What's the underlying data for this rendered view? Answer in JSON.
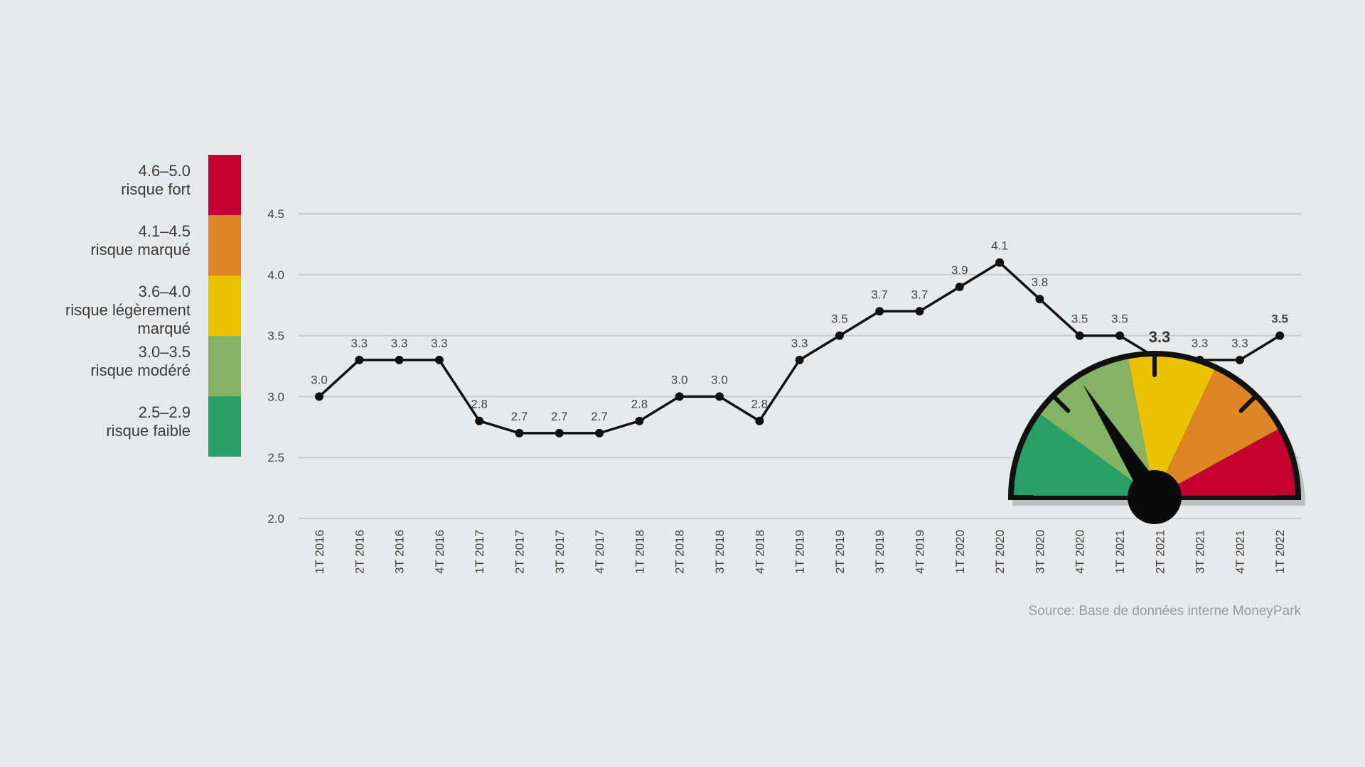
{
  "chart_data": {
    "type": "line",
    "categories": [
      "1T 2016",
      "2T 2016",
      "3T 2016",
      "4T 2016",
      "1T 2017",
      "2T 2017",
      "3T 2017",
      "4T 2017",
      "1T 2018",
      "2T 2018",
      "3T 2018",
      "4T 2018",
      "1T 2019",
      "2T 2019",
      "3T 2019",
      "4T 2019",
      "1T 2020",
      "2T 2020",
      "3T 2020",
      "4T 2020",
      "1T 2021",
      "2T 2021",
      "3T 2021",
      "4T 2021",
      "1T 2022"
    ],
    "values": [
      3.0,
      3.3,
      3.3,
      3.3,
      2.8,
      2.7,
      2.7,
      2.7,
      2.8,
      3.0,
      3.0,
      2.8,
      3.3,
      3.5,
      3.7,
      3.7,
      3.9,
      4.1,
      3.8,
      3.5,
      3.5,
      3.3,
      3.3,
      3.3,
      3.5
    ],
    "value_labels": [
      "3.0",
      "3.3",
      "3.3",
      "3.3",
      "2.8",
      "2.7",
      "2.7",
      "2.7",
      "2.8",
      "3.0",
      "3.0",
      "2.8",
      "3.3",
      "3.5",
      "3.7",
      "3.7",
      "3.9",
      "4.1",
      "3.8",
      "3.5",
      "3.5",
      "3.3",
      "3.3",
      "3.3",
      "3.5"
    ],
    "ylim": [
      2.0,
      4.5
    ],
    "yticks": [
      "2.0",
      "2.5",
      "3.0",
      "3.5",
      "4.0",
      "4.5"
    ],
    "grid": true,
    "line_color": "#111111",
    "legend": [
      {
        "range": "4.6–5.0",
        "label": "risque fort",
        "color": "#c4002f"
      },
      {
        "range": "4.1–4.5",
        "label": "risque marqué",
        "color": "#de8526"
      },
      {
        "range": "3.6–4.0",
        "label": "risque légèrement marqué",
        "color": "#e9c300"
      },
      {
        "range": "3.0–3.5",
        "label": "risque modéré",
        "color": "#84b461"
      },
      {
        "range": "2.5–2.9",
        "label": "risque faible",
        "color": "#279f67"
      }
    ],
    "gauge": {
      "value": 3.3,
      "value_label": "3.3",
      "min": 2.5,
      "max": 5.0,
      "bands": [
        {
          "from": 2.5,
          "to": 3.0,
          "color": "#279f67"
        },
        {
          "from": 3.0,
          "to": 3.6,
          "color": "#84b461"
        },
        {
          "from": 3.6,
          "to": 4.1,
          "color": "#e9c300"
        },
        {
          "from": 4.1,
          "to": 4.6,
          "color": "#de8526"
        },
        {
          "from": 4.6,
          "to": 5.0,
          "color": "#c4002f"
        }
      ]
    },
    "source": "Source: Base de données interne MoneyPark"
  }
}
